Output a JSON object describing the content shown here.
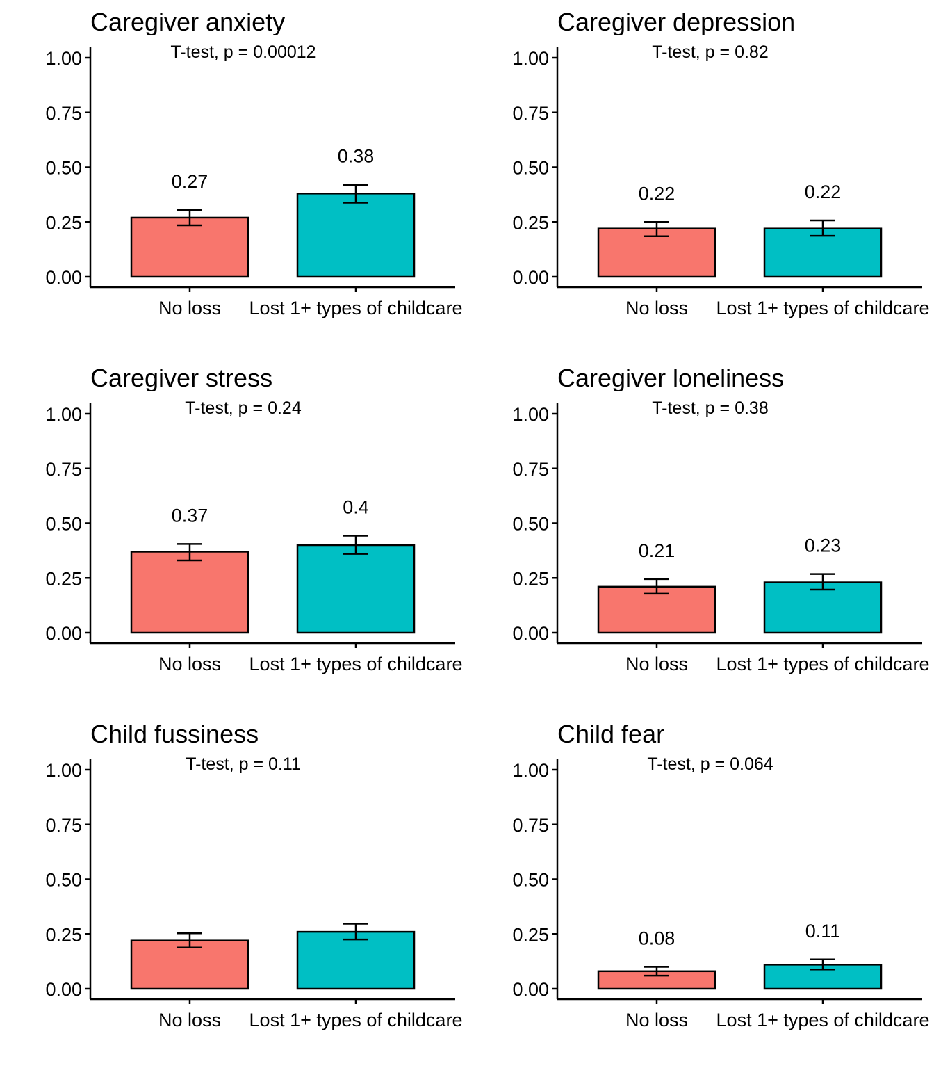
{
  "chart_data": [
    {
      "type": "bar",
      "title": "Caregiver anxiety",
      "annotation": "T-test, p = 0.00012",
      "categories": [
        "No loss",
        "Lost 1+ types of childcare"
      ],
      "values": [
        0.27,
        0.38
      ],
      "error_low": [
        0.235,
        0.338
      ],
      "error_high": [
        0.305,
        0.42
      ],
      "data_labels": [
        "0.27",
        "0.38"
      ],
      "colors": [
        "#F8766D",
        "#00BFC4"
      ],
      "y_ticks": [
        "0.00",
        "0.25",
        "0.50",
        "0.75",
        "1.00"
      ],
      "ylim": [
        0,
        1
      ]
    },
    {
      "type": "bar",
      "title": "Caregiver depression",
      "annotation": "T-test, p = 0.82",
      "categories": [
        "No loss",
        "Lost 1+ types of childcare"
      ],
      "values": [
        0.22,
        0.22
      ],
      "error_low": [
        0.185,
        0.187
      ],
      "error_high": [
        0.25,
        0.257
      ],
      "data_labels": [
        "0.22",
        "0.22"
      ],
      "colors": [
        "#F8766D",
        "#00BFC4"
      ],
      "y_ticks": [
        "0.00",
        "0.25",
        "0.50",
        "0.75",
        "1.00"
      ],
      "ylim": [
        0,
        1
      ]
    },
    {
      "type": "bar",
      "title": "Caregiver stress",
      "annotation": "T-test, p = 0.24",
      "categories": [
        "No loss",
        "Lost 1+ types of childcare"
      ],
      "values": [
        0.37,
        0.4
      ],
      "error_low": [
        0.33,
        0.36
      ],
      "error_high": [
        0.405,
        0.443
      ],
      "data_labels": [
        "0.37",
        "0.4"
      ],
      "colors": [
        "#F8766D",
        "#00BFC4"
      ],
      "y_ticks": [
        "0.00",
        "0.25",
        "0.50",
        "0.75",
        "1.00"
      ],
      "ylim": [
        0,
        1
      ]
    },
    {
      "type": "bar",
      "title": "Caregiver loneliness",
      "annotation": "T-test, p = 0.38",
      "categories": [
        "No loss",
        "Lost 1+ types of childcare"
      ],
      "values": [
        0.21,
        0.23
      ],
      "error_low": [
        0.178,
        0.197
      ],
      "error_high": [
        0.245,
        0.268
      ],
      "data_labels": [
        "0.21",
        "0.23"
      ],
      "colors": [
        "#F8766D",
        "#00BFC4"
      ],
      "y_ticks": [
        "0.00",
        "0.25",
        "0.50",
        "0.75",
        "1.00"
      ],
      "ylim": [
        0,
        1
      ]
    },
    {
      "type": "bar",
      "title": "Child fussiness",
      "annotation": "T-test, p = 0.11",
      "categories": [
        "No loss",
        "Lost 1+ types of childcare"
      ],
      "values": [
        0.22,
        0.26
      ],
      "error_low": [
        0.188,
        0.225
      ],
      "error_high": [
        0.253,
        0.297
      ],
      "data_labels": [],
      "colors": [
        "#F8766D",
        "#00BFC4"
      ],
      "y_ticks": [
        "0.00",
        "0.25",
        "0.50",
        "0.75",
        "1.00"
      ],
      "ylim": [
        0,
        1
      ]
    },
    {
      "type": "bar",
      "title": "Child fear",
      "annotation": "T-test, p = 0.064",
      "categories": [
        "No loss",
        "Lost 1+ types of childcare"
      ],
      "values": [
        0.08,
        0.11
      ],
      "error_low": [
        0.06,
        0.088
      ],
      "error_high": [
        0.1,
        0.134
      ],
      "data_labels": [
        "0.08",
        "0.11"
      ],
      "colors": [
        "#F8766D",
        "#00BFC4"
      ],
      "y_ticks": [
        "0.00",
        "0.25",
        "0.50",
        "0.75",
        "1.00"
      ],
      "ylim": [
        0,
        1
      ]
    }
  ]
}
